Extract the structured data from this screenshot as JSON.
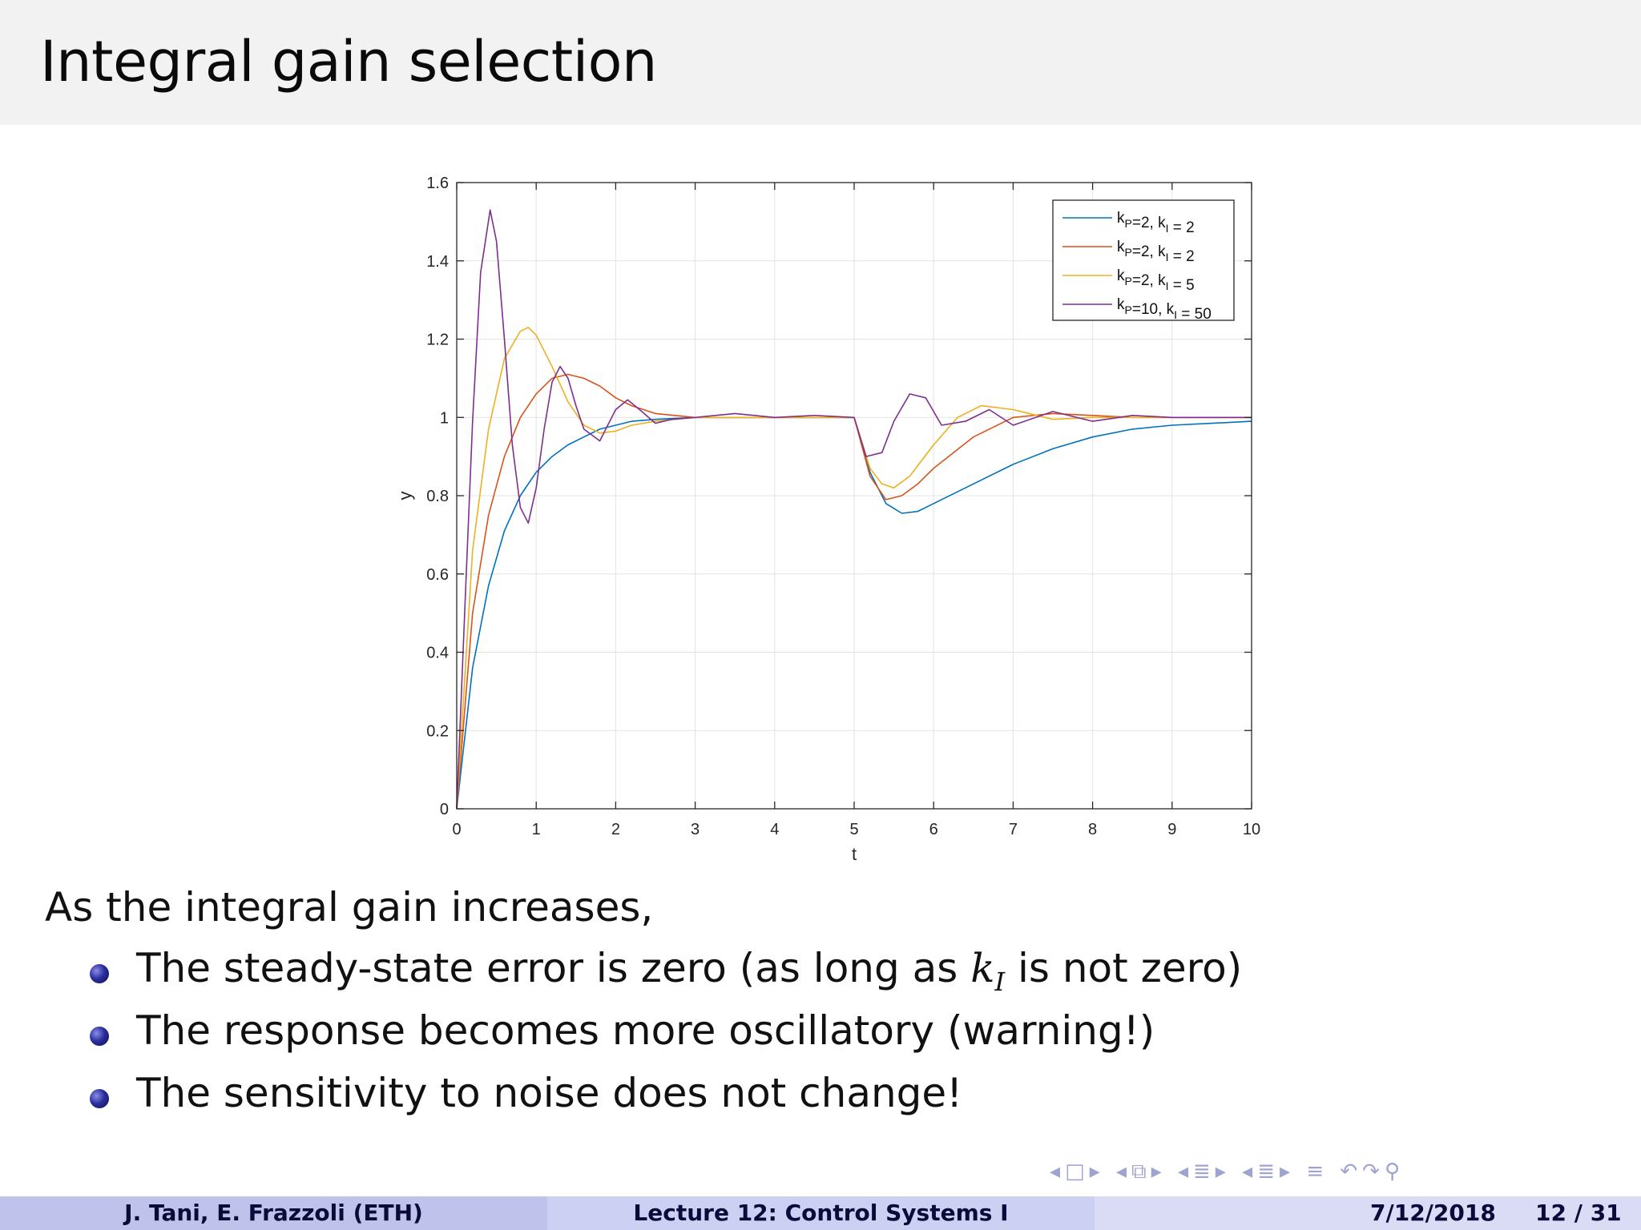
{
  "slide": {
    "title": "Integral gain selection",
    "intro": "As the integral gain increases,",
    "bullets": [
      {
        "pre": "The steady-state error is zero (as long as ",
        "math": "k",
        "sub": "I",
        "post": " is not zero)"
      },
      {
        "text": "The response becomes more oscillatory (warning!)"
      },
      {
        "text": "The sensitivity to noise does not change!"
      }
    ]
  },
  "footer": {
    "authors": "J. Tani, E. Frazzoli  (ETH)",
    "lecture": "Lecture 12: Control Systems I",
    "date": "7/12/2018",
    "page": "12 / 31"
  },
  "nav_icons": [
    "nav-prev-frame-icon",
    "nav-frame-icon",
    "nav-next-frame-icon",
    "nav-prev-slide-icon",
    "nav-slide-icon",
    "nav-next-slide-icon",
    "nav-prev-section-icon",
    "nav-section-icon",
    "nav-next-section-icon",
    "nav-prev-subsection-icon",
    "nav-subsection-icon",
    "nav-next-subsection-icon",
    "nav-toc-icon",
    "nav-undo-icon",
    "nav-redo-icon",
    "nav-search-icon"
  ],
  "chart_data": {
    "type": "line",
    "xlabel": "t",
    "ylabel": "y",
    "xlim": [
      0,
      10
    ],
    "ylim": [
      0,
      1.6
    ],
    "xticks": [
      0,
      1,
      2,
      3,
      4,
      5,
      6,
      7,
      8,
      9,
      10
    ],
    "yticks": [
      0,
      0.2,
      0.4,
      0.6,
      0.8,
      1,
      1.2,
      1.4,
      1.6
    ],
    "ytick_labels": [
      "0",
      "0.2",
      "0.4",
      "0.6",
      "0.8",
      "1",
      "1.2",
      "1.4",
      "1.6"
    ],
    "grid": true,
    "legend_position": "top-right",
    "series": [
      {
        "name": "k_P=2, k_I = 2",
        "label_main": "k",
        "label_sub1": "P",
        "label_mid": "=2, k",
        "label_sub2": "I",
        "label_end": " = 2",
        "color": "#0072bd",
        "x": [
          0,
          0.2,
          0.4,
          0.6,
          0.8,
          1.0,
          1.2,
          1.4,
          1.6,
          1.8,
          2.0,
          2.2,
          2.5,
          3.0,
          3.5,
          4.0,
          4.5,
          5.0,
          5.2,
          5.4,
          5.6,
          5.8,
          6.0,
          6.5,
          7.0,
          7.5,
          8.0,
          8.5,
          9.0,
          9.5,
          10.0
        ],
        "y": [
          0,
          0.36,
          0.57,
          0.71,
          0.8,
          0.86,
          0.9,
          0.93,
          0.95,
          0.97,
          0.98,
          0.99,
          0.995,
          1.0,
          1.0,
          1.0,
          1.0,
          1.0,
          0.86,
          0.78,
          0.755,
          0.76,
          0.78,
          0.83,
          0.88,
          0.92,
          0.95,
          0.97,
          0.98,
          0.985,
          0.99
        ]
      },
      {
        "name": "k_P=2, k_I = 2",
        "label_main": "k",
        "label_sub1": "P",
        "label_mid": "=2, k",
        "label_sub2": "I",
        "label_end": " = 2",
        "color": "#d95319",
        "x": [
          0,
          0.2,
          0.4,
          0.6,
          0.8,
          1.0,
          1.2,
          1.4,
          1.6,
          1.8,
          2.0,
          2.2,
          2.5,
          3.0,
          3.5,
          4.0,
          4.5,
          5.0,
          5.2,
          5.4,
          5.6,
          5.8,
          6.0,
          6.5,
          7.0,
          7.5,
          8.0,
          8.5,
          9.0,
          9.5,
          10.0
        ],
        "y": [
          0,
          0.5,
          0.75,
          0.9,
          1.0,
          1.06,
          1.1,
          1.11,
          1.1,
          1.08,
          1.05,
          1.03,
          1.01,
          1.0,
          1.0,
          1.0,
          1.0,
          1.0,
          0.85,
          0.79,
          0.8,
          0.83,
          0.87,
          0.95,
          1.0,
          1.01,
          1.005,
          1.0,
          1.0,
          1.0,
          1.0
        ]
      },
      {
        "name": "k_P=2, k_I = 5",
        "label_main": "k",
        "label_sub1": "P",
        "label_mid": "=2, k",
        "label_sub2": "I",
        "label_end": " = 5",
        "color": "#edb120",
        "x": [
          0,
          0.2,
          0.4,
          0.6,
          0.8,
          0.9,
          1.0,
          1.2,
          1.4,
          1.6,
          1.8,
          2.0,
          2.2,
          2.5,
          3.0,
          3.5,
          4.0,
          4.5,
          5.0,
          5.2,
          5.35,
          5.5,
          5.7,
          6.0,
          6.3,
          6.6,
          7.0,
          7.5,
          8.0,
          8.5,
          9.0,
          10.0
        ],
        "y": [
          0,
          0.66,
          0.97,
          1.15,
          1.22,
          1.23,
          1.21,
          1.13,
          1.04,
          0.98,
          0.96,
          0.965,
          0.98,
          0.99,
          1.0,
          1.0,
          1.0,
          1.0,
          1.0,
          0.87,
          0.83,
          0.82,
          0.85,
          0.93,
          1.0,
          1.03,
          1.02,
          0.995,
          1.0,
          1.0,
          1.0,
          1.0
        ]
      },
      {
        "name": "k_P=10, k_I = 50",
        "label_main": "k",
        "label_sub1": "P",
        "label_mid": "=10, k",
        "label_sub2": "I",
        "label_end": " = 50",
        "color": "#7e2f8e",
        "x": [
          0,
          0.1,
          0.2,
          0.3,
          0.42,
          0.5,
          0.6,
          0.7,
          0.8,
          0.9,
          1.0,
          1.1,
          1.2,
          1.3,
          1.4,
          1.5,
          1.6,
          1.8,
          2.0,
          2.15,
          2.3,
          2.5,
          2.7,
          3.0,
          3.5,
          4.0,
          4.5,
          5.0,
          5.15,
          5.35,
          5.5,
          5.7,
          5.9,
          6.1,
          6.4,
          6.7,
          7.0,
          7.5,
          8.0,
          8.5,
          9.0,
          9.5,
          10.0
        ],
        "y": [
          0,
          0.5,
          0.99,
          1.37,
          1.53,
          1.45,
          1.2,
          0.93,
          0.77,
          0.73,
          0.82,
          0.97,
          1.09,
          1.13,
          1.1,
          1.03,
          0.97,
          0.94,
          1.02,
          1.045,
          1.02,
          0.985,
          0.995,
          1.0,
          1.01,
          1.0,
          1.005,
          1.0,
          0.9,
          0.91,
          0.99,
          1.06,
          1.05,
          0.98,
          0.99,
          1.02,
          0.98,
          1.015,
          0.99,
          1.005,
          1.0,
          1.0,
          1.0
        ]
      }
    ]
  }
}
